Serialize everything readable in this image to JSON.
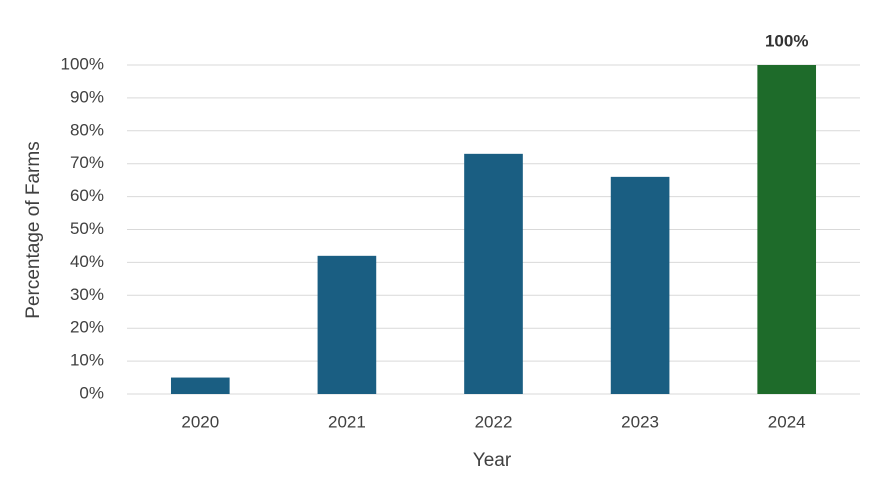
{
  "chart_data": {
    "type": "bar",
    "x_label": "Year",
    "y_label": "Percentage of Farms",
    "categories": [
      "2020",
      "2021",
      "2022",
      "2023",
      "2024"
    ],
    "values": [
      5,
      42,
      73,
      66,
      100
    ],
    "value_labels": [
      null,
      null,
      null,
      null,
      "100%"
    ],
    "colors": [
      "#1a5e82",
      "#1a5e82",
      "#1a5e82",
      "#1a5e82",
      "#1e6b2a"
    ],
    "ylim": [
      0,
      100
    ],
    "yticks": [
      {
        "value": 0,
        "label": "0%"
      },
      {
        "value": 10,
        "label": "10%"
      },
      {
        "value": 20,
        "label": "20%"
      },
      {
        "value": 30,
        "label": "30%"
      },
      {
        "value": 40,
        "label": "40%"
      },
      {
        "value": 50,
        "label": "50%"
      },
      {
        "value": 60,
        "label": "60%"
      },
      {
        "value": 70,
        "label": "70%"
      },
      {
        "value": 80,
        "label": "80%"
      },
      {
        "value": 90,
        "label": "90%"
      },
      {
        "value": 100,
        "label": "100%"
      }
    ],
    "grid": true
  }
}
